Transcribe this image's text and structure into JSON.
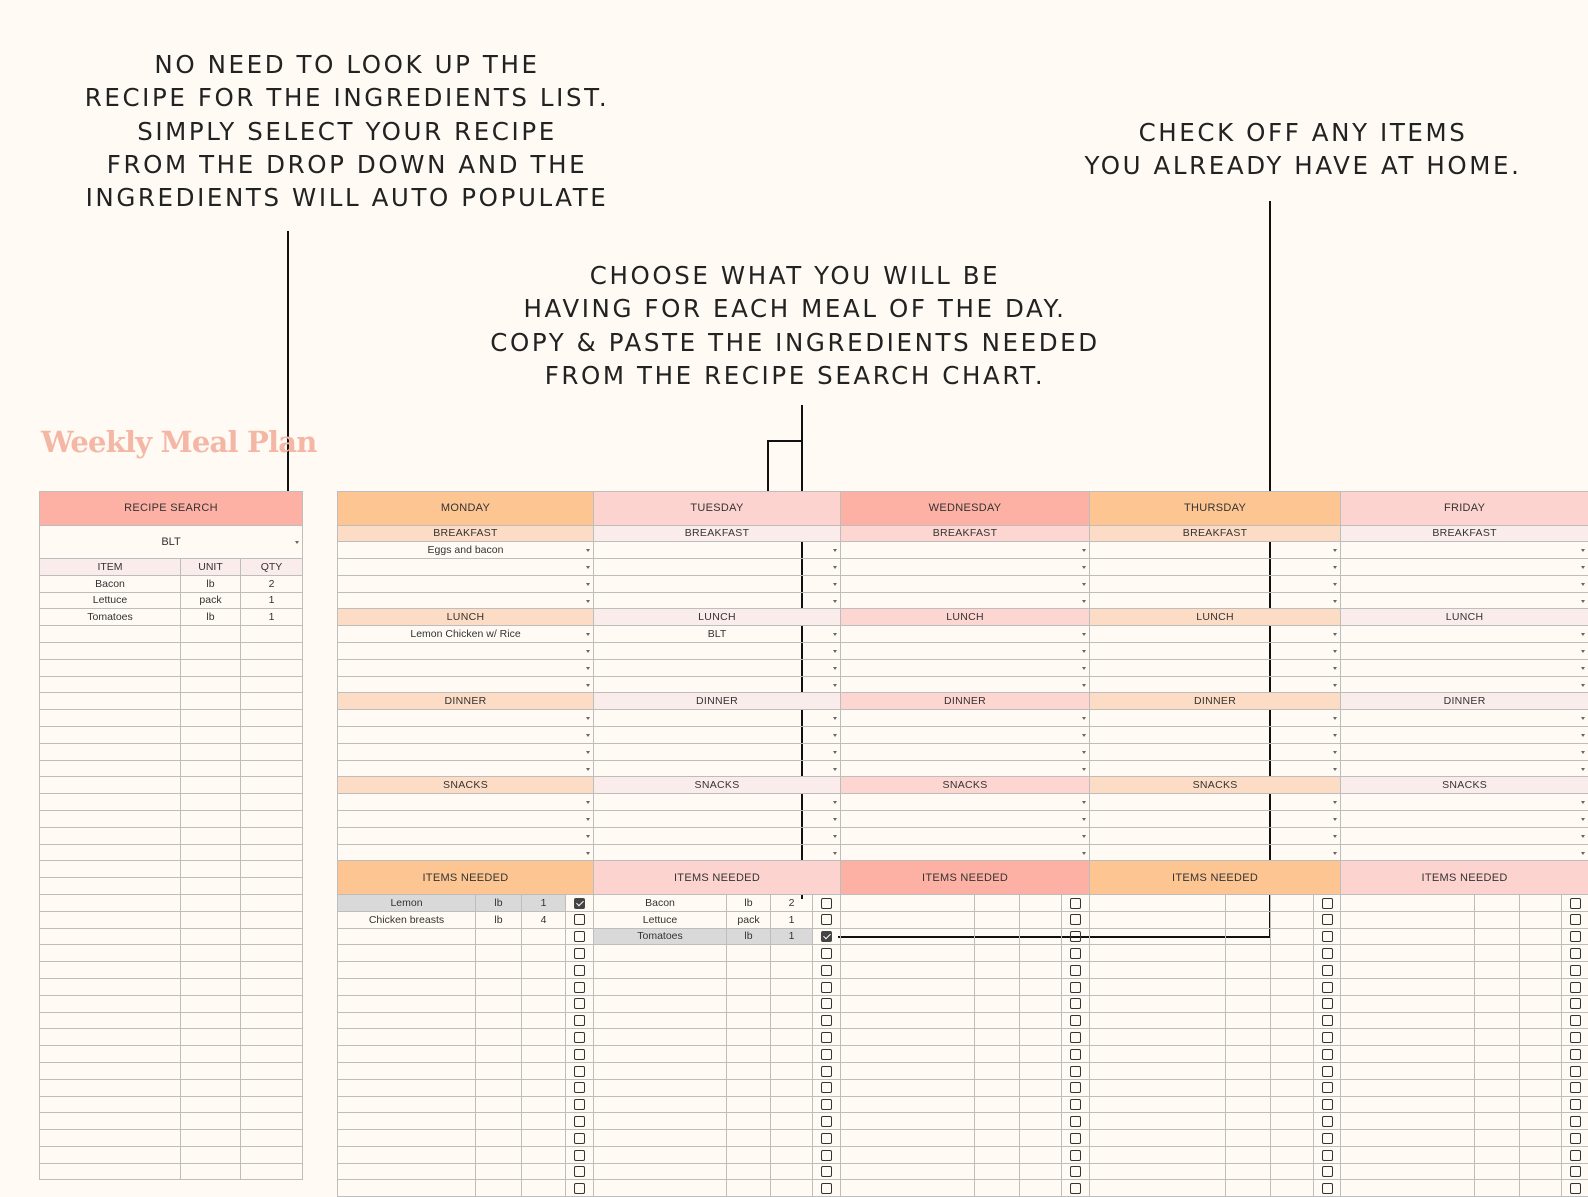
{
  "callouts": {
    "recipe": [
      "NO NEED TO LOOK UP THE",
      "RECIPE FOR THE INGREDIENTS LIST.",
      "SIMPLY SELECT YOUR RECIPE",
      "FROM THE DROP DOWN AND THE",
      "INGREDIENTS WILL AUTO POPULATE"
    ],
    "meal": [
      "CHOOSE WHAT YOU WILL BE",
      "HAVING FOR EACH MEAL OF THE DAY.",
      "COPY & PASTE THE INGREDIENTS NEEDED",
      "FROM THE RECIPE SEARCH CHART."
    ],
    "check": [
      "CHECK OFF ANY ITEMS",
      "YOU ALREADY HAVE AT HOME."
    ]
  },
  "title": "Weekly Meal Plan",
  "recipe_search": {
    "header": "RECIPE SEARCH",
    "selected": "BLT",
    "columns": [
      "ITEM",
      "UNIT",
      "QTY"
    ],
    "rows": [
      [
        "Bacon",
        "lb",
        "2"
      ],
      [
        "Lettuce",
        "pack",
        "1"
      ],
      [
        "Tomatoes",
        "lb",
        "1"
      ]
    ]
  },
  "meal_labels": [
    "BREAKFAST",
    "LUNCH",
    "DINNER",
    "SNACKS"
  ],
  "items_needed_label": "ITEMS NEEDED",
  "days": [
    {
      "name": "MONDAY",
      "header_color": "#fdc592",
      "meal_color": "#fcdcc4",
      "meals": {
        "BREAKFAST": [
          "Eggs and bacon",
          "",
          "",
          ""
        ],
        "LUNCH": [
          "Lemon Chicken w/ Rice",
          "",
          "",
          ""
        ],
        "DINNER": [
          "",
          "",
          "",
          ""
        ],
        "SNACKS": [
          "",
          "",
          "",
          ""
        ]
      },
      "items": [
        {
          "item": "Lemon",
          "unit": "lb",
          "qty": "1",
          "checked": true
        },
        {
          "item": "Chicken breasts",
          "unit": "lb",
          "qty": "4",
          "checked": false
        }
      ]
    },
    {
      "name": "TUESDAY",
      "header_color": "#fdd3cf",
      "meal_color": "#f9ecea",
      "meals": {
        "BREAKFAST": [
          "",
          "",
          "",
          ""
        ],
        "LUNCH": [
          "BLT",
          "",
          "",
          ""
        ],
        "DINNER": [
          "",
          "",
          "",
          ""
        ],
        "SNACKS": [
          "",
          "",
          "",
          ""
        ]
      },
      "items": [
        {
          "item": "Bacon",
          "unit": "lb",
          "qty": "2",
          "checked": false
        },
        {
          "item": "Lettuce",
          "unit": "pack",
          "qty": "1",
          "checked": false
        },
        {
          "item": "Tomatoes",
          "unit": "lb",
          "qty": "1",
          "checked": true
        }
      ]
    },
    {
      "name": "WEDNESDAY",
      "header_color": "#fdb0a4",
      "meal_color": "#fdd6d1",
      "meals": {
        "BREAKFAST": [
          "",
          "",
          "",
          ""
        ],
        "LUNCH": [
          "",
          "",
          "",
          ""
        ],
        "DINNER": [
          "",
          "",
          "",
          ""
        ],
        "SNACKS": [
          "",
          "",
          "",
          ""
        ]
      },
      "items": []
    },
    {
      "name": "THURSDAY",
      "header_color": "#fdc592",
      "meal_color": "#fcdcc4",
      "meals": {
        "BREAKFAST": [
          "",
          "",
          "",
          ""
        ],
        "LUNCH": [
          "",
          "",
          "",
          ""
        ],
        "DINNER": [
          "",
          "",
          "",
          ""
        ],
        "SNACKS": [
          "",
          "",
          "",
          ""
        ]
      },
      "items": []
    },
    {
      "name": "FRIDAY",
      "header_color": "#fdd3cf",
      "meal_color": "#f9ecea",
      "meals": {
        "BREAKFAST": [
          "",
          "",
          "",
          ""
        ],
        "LUNCH": [
          "",
          "",
          "",
          ""
        ],
        "DINNER": [
          "",
          "",
          "",
          ""
        ],
        "SNACKS": [
          "",
          "",
          "",
          ""
        ]
      },
      "items": []
    }
  ],
  "colors": {
    "recipe_header": "#fdb0a4",
    "recipe_col_header": "#f9ecea",
    "title": "#f5b7a5",
    "filled_item": "#d9d9d9"
  }
}
